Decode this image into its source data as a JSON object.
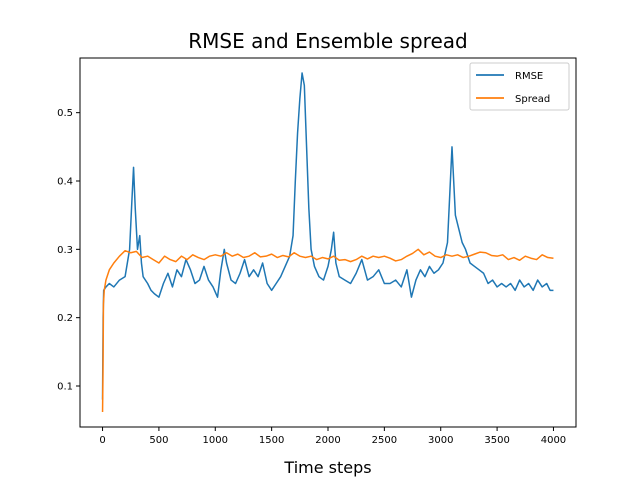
{
  "chart_data": {
    "type": "line",
    "title": "RMSE and Ensemble spread",
    "xlabel": "Time steps",
    "ylabel": "",
    "xlim": [
      -200,
      4200
    ],
    "ylim": [
      0.04,
      0.58
    ],
    "x_ticks": [
      0,
      500,
      1000,
      1500,
      2000,
      2500,
      3000,
      3500,
      4000
    ],
    "y_ticks": [
      0.1,
      0.2,
      0.3,
      0.4,
      0.5
    ],
    "grid": false,
    "legend": "top-right",
    "series": [
      {
        "name": "RMSE",
        "color": "#1f77b4",
        "points": [
          [
            0,
            0.08
          ],
          [
            5,
            0.2
          ],
          [
            10,
            0.24
          ],
          [
            30,
            0.245
          ],
          [
            60,
            0.25
          ],
          [
            100,
            0.245
          ],
          [
            150,
            0.255
          ],
          [
            200,
            0.26
          ],
          [
            240,
            0.3
          ],
          [
            260,
            0.37
          ],
          [
            275,
            0.42
          ],
          [
            290,
            0.36
          ],
          [
            310,
            0.3
          ],
          [
            330,
            0.32
          ],
          [
            345,
            0.28
          ],
          [
            360,
            0.26
          ],
          [
            400,
            0.25
          ],
          [
            430,
            0.24
          ],
          [
            460,
            0.235
          ],
          [
            500,
            0.23
          ],
          [
            540,
            0.25
          ],
          [
            580,
            0.265
          ],
          [
            620,
            0.245
          ],
          [
            660,
            0.27
          ],
          [
            700,
            0.26
          ],
          [
            740,
            0.285
          ],
          [
            780,
            0.27
          ],
          [
            820,
            0.25
          ],
          [
            860,
            0.255
          ],
          [
            900,
            0.275
          ],
          [
            940,
            0.255
          ],
          [
            980,
            0.245
          ],
          [
            1020,
            0.23
          ],
          [
            1050,
            0.27
          ],
          [
            1080,
            0.3
          ],
          [
            1100,
            0.28
          ],
          [
            1140,
            0.255
          ],
          [
            1180,
            0.25
          ],
          [
            1220,
            0.265
          ],
          [
            1260,
            0.285
          ],
          [
            1300,
            0.26
          ],
          [
            1340,
            0.27
          ],
          [
            1380,
            0.26
          ],
          [
            1420,
            0.28
          ],
          [
            1460,
            0.25
          ],
          [
            1500,
            0.24
          ],
          [
            1540,
            0.25
          ],
          [
            1580,
            0.26
          ],
          [
            1620,
            0.275
          ],
          [
            1660,
            0.29
          ],
          [
            1690,
            0.32
          ],
          [
            1710,
            0.4
          ],
          [
            1730,
            0.47
          ],
          [
            1750,
            0.52
          ],
          [
            1770,
            0.558
          ],
          [
            1790,
            0.54
          ],
          [
            1810,
            0.45
          ],
          [
            1830,
            0.36
          ],
          [
            1850,
            0.3
          ],
          [
            1880,
            0.275
          ],
          [
            1920,
            0.26
          ],
          [
            1960,
            0.255
          ],
          [
            2000,
            0.275
          ],
          [
            2030,
            0.3
          ],
          [
            2050,
            0.325
          ],
          [
            2070,
            0.28
          ],
          [
            2100,
            0.26
          ],
          [
            2150,
            0.255
          ],
          [
            2200,
            0.25
          ],
          [
            2250,
            0.265
          ],
          [
            2300,
            0.285
          ],
          [
            2350,
            0.255
          ],
          [
            2400,
            0.26
          ],
          [
            2450,
            0.27
          ],
          [
            2500,
            0.25
          ],
          [
            2550,
            0.25
          ],
          [
            2600,
            0.255
          ],
          [
            2650,
            0.245
          ],
          [
            2700,
            0.27
          ],
          [
            2740,
            0.23
          ],
          [
            2780,
            0.255
          ],
          [
            2820,
            0.27
          ],
          [
            2860,
            0.26
          ],
          [
            2900,
            0.275
          ],
          [
            2940,
            0.265
          ],
          [
            2980,
            0.27
          ],
          [
            3020,
            0.28
          ],
          [
            3060,
            0.31
          ],
          [
            3080,
            0.38
          ],
          [
            3100,
            0.45
          ],
          [
            3115,
            0.4
          ],
          [
            3130,
            0.35
          ],
          [
            3160,
            0.33
          ],
          [
            3190,
            0.31
          ],
          [
            3220,
            0.3
          ],
          [
            3260,
            0.28
          ],
          [
            3300,
            0.275
          ],
          [
            3340,
            0.27
          ],
          [
            3380,
            0.265
          ],
          [
            3420,
            0.25
          ],
          [
            3460,
            0.255
          ],
          [
            3500,
            0.245
          ],
          [
            3540,
            0.25
          ],
          [
            3580,
            0.245
          ],
          [
            3620,
            0.25
          ],
          [
            3660,
            0.24
          ],
          [
            3700,
            0.255
          ],
          [
            3740,
            0.245
          ],
          [
            3780,
            0.25
          ],
          [
            3820,
            0.24
          ],
          [
            3860,
            0.255
          ],
          [
            3900,
            0.245
          ],
          [
            3940,
            0.25
          ],
          [
            3970,
            0.24
          ],
          [
            4000,
            0.24
          ]
        ]
      },
      {
        "name": "Spread",
        "color": "#ff7f0e",
        "points": [
          [
            0,
            0.062
          ],
          [
            4,
            0.12
          ],
          [
            8,
            0.22
          ],
          [
            15,
            0.24
          ],
          [
            30,
            0.255
          ],
          [
            60,
            0.27
          ],
          [
            100,
            0.28
          ],
          [
            150,
            0.29
          ],
          [
            200,
            0.298
          ],
          [
            250,
            0.295
          ],
          [
            300,
            0.297
          ],
          [
            350,
            0.288
          ],
          [
            400,
            0.29
          ],
          [
            450,
            0.285
          ],
          [
            500,
            0.28
          ],
          [
            550,
            0.29
          ],
          [
            600,
            0.285
          ],
          [
            650,
            0.282
          ],
          [
            700,
            0.29
          ],
          [
            750,
            0.285
          ],
          [
            800,
            0.292
          ],
          [
            850,
            0.288
          ],
          [
            900,
            0.285
          ],
          [
            950,
            0.29
          ],
          [
            1000,
            0.292
          ],
          [
            1050,
            0.29
          ],
          [
            1100,
            0.295
          ],
          [
            1150,
            0.29
          ],
          [
            1200,
            0.293
          ],
          [
            1250,
            0.288
          ],
          [
            1300,
            0.29
          ],
          [
            1350,
            0.295
          ],
          [
            1400,
            0.289
          ],
          [
            1450,
            0.29
          ],
          [
            1500,
            0.293
          ],
          [
            1550,
            0.288
          ],
          [
            1600,
            0.291
          ],
          [
            1650,
            0.289
          ],
          [
            1700,
            0.295
          ],
          [
            1750,
            0.29
          ],
          [
            1800,
            0.288
          ],
          [
            1850,
            0.29
          ],
          [
            1900,
            0.285
          ],
          [
            1950,
            0.288
          ],
          [
            2000,
            0.286
          ],
          [
            2050,
            0.29
          ],
          [
            2100,
            0.284
          ],
          [
            2150,
            0.285
          ],
          [
            2200,
            0.282
          ],
          [
            2250,
            0.285
          ],
          [
            2300,
            0.29
          ],
          [
            2350,
            0.286
          ],
          [
            2400,
            0.29
          ],
          [
            2450,
            0.288
          ],
          [
            2500,
            0.29
          ],
          [
            2550,
            0.287
          ],
          [
            2600,
            0.283
          ],
          [
            2650,
            0.285
          ],
          [
            2700,
            0.29
          ],
          [
            2750,
            0.294
          ],
          [
            2800,
            0.3
          ],
          [
            2850,
            0.292
          ],
          [
            2900,
            0.296
          ],
          [
            2950,
            0.29
          ],
          [
            3000,
            0.288
          ],
          [
            3050,
            0.292
          ],
          [
            3100,
            0.29
          ],
          [
            3150,
            0.292
          ],
          [
            3200,
            0.288
          ],
          [
            3250,
            0.29
          ],
          [
            3300,
            0.293
          ],
          [
            3350,
            0.296
          ],
          [
            3400,
            0.295
          ],
          [
            3450,
            0.291
          ],
          [
            3500,
            0.29
          ],
          [
            3550,
            0.292
          ],
          [
            3600,
            0.285
          ],
          [
            3650,
            0.288
          ],
          [
            3700,
            0.284
          ],
          [
            3750,
            0.29
          ],
          [
            3800,
            0.287
          ],
          [
            3850,
            0.285
          ],
          [
            3900,
            0.292
          ],
          [
            3950,
            0.288
          ],
          [
            4000,
            0.287
          ]
        ]
      }
    ]
  }
}
